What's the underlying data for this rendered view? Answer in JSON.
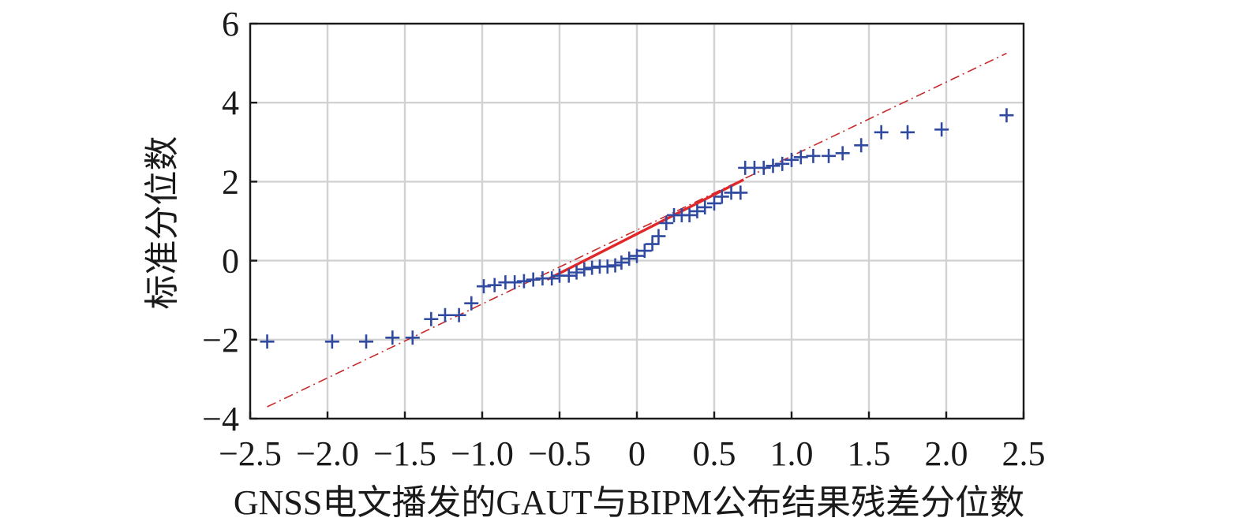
{
  "chart_data": {
    "type": "scatter",
    "xlabel": "GNSS电文播发的GAUT与BIPM公布结果残差分位数",
    "ylabel": "标准分位数",
    "xlim": [
      -2.5,
      2.5
    ],
    "ylim": [
      -4,
      6
    ],
    "xticks": [
      -2.5,
      -2.0,
      -1.5,
      -1.0,
      -0.5,
      0,
      0.5,
      1.0,
      1.5,
      2.0,
      2.5
    ],
    "xtick_labels": [
      "−2.5",
      "−2.0",
      "−1.5",
      "−1.0",
      "−0.5",
      "0",
      "0.5",
      "1.0",
      "1.5",
      "2.0",
      "2.5"
    ],
    "yticks": [
      -4,
      -2,
      0,
      2,
      4,
      6
    ],
    "ytick_labels": [
      "−4",
      "−2",
      "0",
      "2",
      "4",
      "6"
    ],
    "grid": true,
    "marker": "+",
    "colors": {
      "points": "#2f4aa0",
      "fit_solid": "#e0282a",
      "fit_dashdot": "#c8292b"
    },
    "points": [
      {
        "x": -2.39,
        "y": -2.05
      },
      {
        "x": -1.97,
        "y": -2.05
      },
      {
        "x": -1.75,
        "y": -2.05
      },
      {
        "x": -1.58,
        "y": -1.95
      },
      {
        "x": -1.45,
        "y": -1.95
      },
      {
        "x": -1.33,
        "y": -1.48
      },
      {
        "x": -1.24,
        "y": -1.38
      },
      {
        "x": -1.15,
        "y": -1.38
      },
      {
        "x": -1.07,
        "y": -1.08
      },
      {
        "x": -0.99,
        "y": -0.65
      },
      {
        "x": -0.92,
        "y": -0.62
      },
      {
        "x": -0.85,
        "y": -0.55
      },
      {
        "x": -0.79,
        "y": -0.55
      },
      {
        "x": -0.73,
        "y": -0.52
      },
      {
        "x": -0.67,
        "y": -0.48
      },
      {
        "x": -0.61,
        "y": -0.45
      },
      {
        "x": -0.55,
        "y": -0.45
      },
      {
        "x": -0.5,
        "y": -0.38
      },
      {
        "x": -0.44,
        "y": -0.38
      },
      {
        "x": -0.39,
        "y": -0.3
      },
      {
        "x": -0.34,
        "y": -0.22
      },
      {
        "x": -0.29,
        "y": -0.18
      },
      {
        "x": -0.24,
        "y": -0.15
      },
      {
        "x": -0.19,
        "y": -0.15
      },
      {
        "x": -0.14,
        "y": -0.12
      },
      {
        "x": -0.1,
        "y": -0.05
      },
      {
        "x": -0.05,
        "y": 0.05
      },
      {
        "x": 0.0,
        "y": 0.12
      },
      {
        "x": 0.05,
        "y": 0.25
      },
      {
        "x": 0.1,
        "y": 0.42
      },
      {
        "x": 0.14,
        "y": 0.62
      },
      {
        "x": 0.19,
        "y": 0.95
      },
      {
        "x": 0.24,
        "y": 1.15
      },
      {
        "x": 0.29,
        "y": 1.15
      },
      {
        "x": 0.34,
        "y": 1.15
      },
      {
        "x": 0.39,
        "y": 1.25
      },
      {
        "x": 0.44,
        "y": 1.35
      },
      {
        "x": 0.5,
        "y": 1.45
      },
      {
        "x": 0.55,
        "y": 1.62
      },
      {
        "x": 0.61,
        "y": 1.72
      },
      {
        "x": 0.67,
        "y": 1.72
      },
      {
        "x": 0.7,
        "y": 2.35
      },
      {
        "x": 0.76,
        "y": 2.35
      },
      {
        "x": 0.82,
        "y": 2.35
      },
      {
        "x": 0.88,
        "y": 2.4
      },
      {
        "x": 0.94,
        "y": 2.45
      },
      {
        "x": 1.0,
        "y": 2.55
      },
      {
        "x": 1.06,
        "y": 2.62
      },
      {
        "x": 1.14,
        "y": 2.65
      },
      {
        "x": 1.24,
        "y": 2.65
      },
      {
        "x": 1.33,
        "y": 2.72
      },
      {
        "x": 1.45,
        "y": 2.92
      },
      {
        "x": 1.58,
        "y": 3.25
      },
      {
        "x": 1.75,
        "y": 3.25
      },
      {
        "x": 1.97,
        "y": 3.32
      },
      {
        "x": 2.39,
        "y": 3.68
      }
    ],
    "reference_lines": [
      {
        "style": "dashdot",
        "x": [
          -2.39,
          2.39
        ],
        "y": [
          -3.7,
          5.25
        ]
      },
      {
        "style": "solid",
        "x": [
          -0.58,
          0.69
        ],
        "y": [
          -0.48,
          2.05
        ]
      }
    ]
  }
}
